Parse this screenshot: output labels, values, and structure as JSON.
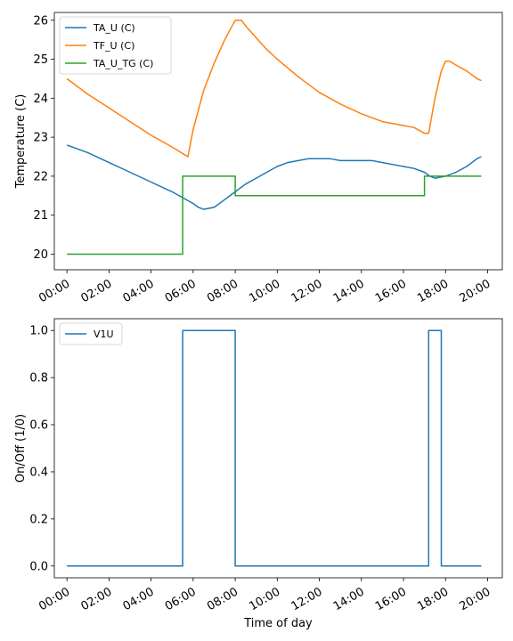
{
  "chart_data": [
    {
      "type": "line",
      "title": "",
      "xlabel": "",
      "ylabel": "Temperature (C)",
      "x_unit": "time of day (hours)",
      "xlim": [
        -0.6,
        20.7
      ],
      "ylim": [
        19.6,
        26.2
      ],
      "xticks": [
        "00:00",
        "02:00",
        "04:00",
        "06:00",
        "08:00",
        "10:00",
        "12:00",
        "14:00",
        "16:00",
        "18:00",
        "20:00"
      ],
      "yticks": [
        "20",
        "21",
        "22",
        "23",
        "24",
        "25",
        "26"
      ],
      "legend_position": "upper-left",
      "grid": false,
      "series": [
        {
          "name": "TA_U (C)",
          "color": "#1f77b4",
          "x": [
            0.0,
            1.0,
            2.0,
            3.0,
            4.0,
            5.0,
            6.0,
            6.25,
            6.5,
            7.0,
            7.5,
            8.0,
            8.5,
            9.0,
            9.5,
            10.0,
            10.5,
            11.0,
            11.5,
            12.0,
            12.5,
            13.0,
            13.5,
            14.0,
            14.5,
            15.0,
            15.5,
            16.0,
            16.5,
            17.0,
            17.25,
            17.5,
            18.0,
            18.5,
            19.0,
            19.5,
            19.7
          ],
          "y": [
            22.8,
            22.6,
            22.35,
            22.1,
            21.85,
            21.6,
            21.3,
            21.2,
            21.15,
            21.2,
            21.4,
            21.6,
            21.8,
            21.95,
            22.1,
            22.25,
            22.35,
            22.4,
            22.45,
            22.45,
            22.45,
            22.4,
            22.4,
            22.4,
            22.4,
            22.35,
            22.3,
            22.25,
            22.2,
            22.1,
            22.0,
            21.95,
            22.0,
            22.1,
            22.25,
            22.45,
            22.5
          ]
        },
        {
          "name": "TF_U (C)",
          "color": "#ff7f0e",
          "x": [
            0.0,
            1.0,
            2.0,
            3.0,
            4.0,
            5.0,
            5.6,
            5.75,
            6.0,
            6.5,
            7.0,
            7.5,
            8.0,
            8.3,
            8.5,
            9.0,
            9.5,
            10.0,
            11.0,
            12.0,
            13.0,
            14.0,
            15.0,
            16.0,
            16.5,
            17.0,
            17.2,
            17.5,
            17.8,
            18.0,
            18.2,
            18.5,
            19.0,
            19.5,
            19.7
          ],
          "y": [
            24.5,
            24.1,
            23.75,
            23.4,
            23.05,
            22.75,
            22.55,
            22.5,
            23.2,
            24.2,
            24.9,
            25.5,
            26.0,
            26.0,
            25.85,
            25.55,
            25.25,
            25.0,
            24.55,
            24.15,
            23.85,
            23.6,
            23.4,
            23.3,
            23.25,
            23.1,
            23.1,
            24.0,
            24.7,
            24.95,
            24.95,
            24.85,
            24.7,
            24.5,
            24.45
          ]
        },
        {
          "name": "TA_U_TG (C)",
          "color": "#2ca02c",
          "x": [
            0.0,
            5.5,
            5.5,
            8.0,
            8.0,
            17.0,
            17.0,
            19.7
          ],
          "y": [
            20.0,
            20.0,
            22.0,
            22.0,
            21.5,
            21.5,
            22.0,
            22.0
          ]
        }
      ]
    },
    {
      "type": "line",
      "title": "",
      "xlabel": "Time of day",
      "ylabel": "On/Off (1/0)",
      "x_unit": "time of day (hours)",
      "xlim": [
        -0.6,
        20.7
      ],
      "ylim": [
        -0.05,
        1.05
      ],
      "xticks": [
        "00:00",
        "02:00",
        "04:00",
        "06:00",
        "08:00",
        "10:00",
        "12:00",
        "14:00",
        "16:00",
        "18:00",
        "20:00"
      ],
      "yticks": [
        "0.0",
        "0.2",
        "0.4",
        "0.6",
        "0.8",
        "1.0"
      ],
      "legend_position": "upper-left",
      "grid": false,
      "series": [
        {
          "name": "V1U",
          "color": "#1f77b4",
          "x": [
            0.0,
            5.5,
            5.5,
            8.0,
            8.0,
            17.2,
            17.2,
            17.8,
            17.8,
            19.7
          ],
          "y": [
            0,
            0,
            1,
            1,
            0,
            0,
            1,
            1,
            0,
            0
          ]
        }
      ]
    }
  ]
}
